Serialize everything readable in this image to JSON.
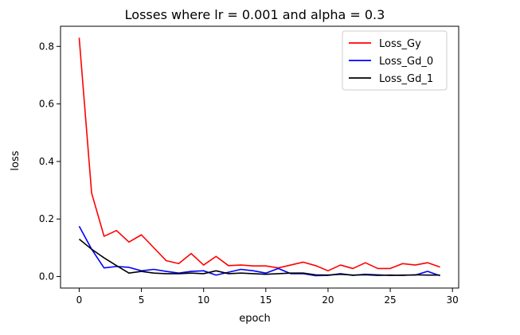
{
  "chart_data": {
    "type": "line",
    "title": "Losses where lr = 0.001 and alpha = 0.3",
    "xlabel": "epoch",
    "ylabel": "loss",
    "xlim": [
      -1.5,
      30.5
    ],
    "ylim": [
      -0.04,
      0.87
    ],
    "xticks": [
      0,
      5,
      10,
      15,
      20,
      25,
      30
    ],
    "yticks": [
      0.0,
      0.2,
      0.4,
      0.6,
      0.8
    ],
    "xtick_labels": [
      "0",
      "5",
      "10",
      "15",
      "20",
      "25",
      "30"
    ],
    "ytick_labels": [
      "0.0",
      "0.2",
      "0.4",
      "0.6",
      "0.8"
    ],
    "grid": false,
    "legend_position": "upper right",
    "x": [
      0,
      1,
      2,
      3,
      4,
      5,
      6,
      7,
      8,
      9,
      10,
      11,
      12,
      13,
      14,
      15,
      16,
      17,
      18,
      19,
      20,
      21,
      22,
      23,
      24,
      25,
      26,
      27,
      28,
      29
    ],
    "series": [
      {
        "name": "Loss_Gy",
        "color": "#ff0000",
        "values": [
          0.83,
          0.29,
          0.14,
          0.16,
          0.12,
          0.145,
          0.1,
          0.055,
          0.045,
          0.08,
          0.04,
          0.07,
          0.038,
          0.04,
          0.037,
          0.037,
          0.03,
          0.04,
          0.05,
          0.038,
          0.02,
          0.04,
          0.028,
          0.048,
          0.028,
          0.028,
          0.045,
          0.04,
          0.048,
          0.033
        ]
      },
      {
        "name": "Loss_Gd_0",
        "color": "#0000ff",
        "values": [
          0.175,
          0.095,
          0.03,
          0.035,
          0.032,
          0.02,
          0.025,
          0.018,
          0.012,
          0.018,
          0.02,
          0.005,
          0.015,
          0.025,
          0.02,
          0.012,
          0.028,
          0.01,
          0.01,
          0.003,
          0.004,
          0.01,
          0.004,
          0.008,
          0.006,
          0.004,
          0.005,
          0.005,
          0.018,
          0.003
        ]
      },
      {
        "name": "Loss_Gd_1",
        "color": "#000000",
        "values": [
          0.13,
          0.095,
          0.065,
          0.038,
          0.012,
          0.018,
          0.012,
          0.01,
          0.01,
          0.012,
          0.01,
          0.02,
          0.01,
          0.012,
          0.01,
          0.008,
          0.01,
          0.012,
          0.012,
          0.006,
          0.005,
          0.008,
          0.005,
          0.006,
          0.004,
          0.005,
          0.004,
          0.006,
          0.005,
          0.005
        ]
      }
    ]
  }
}
